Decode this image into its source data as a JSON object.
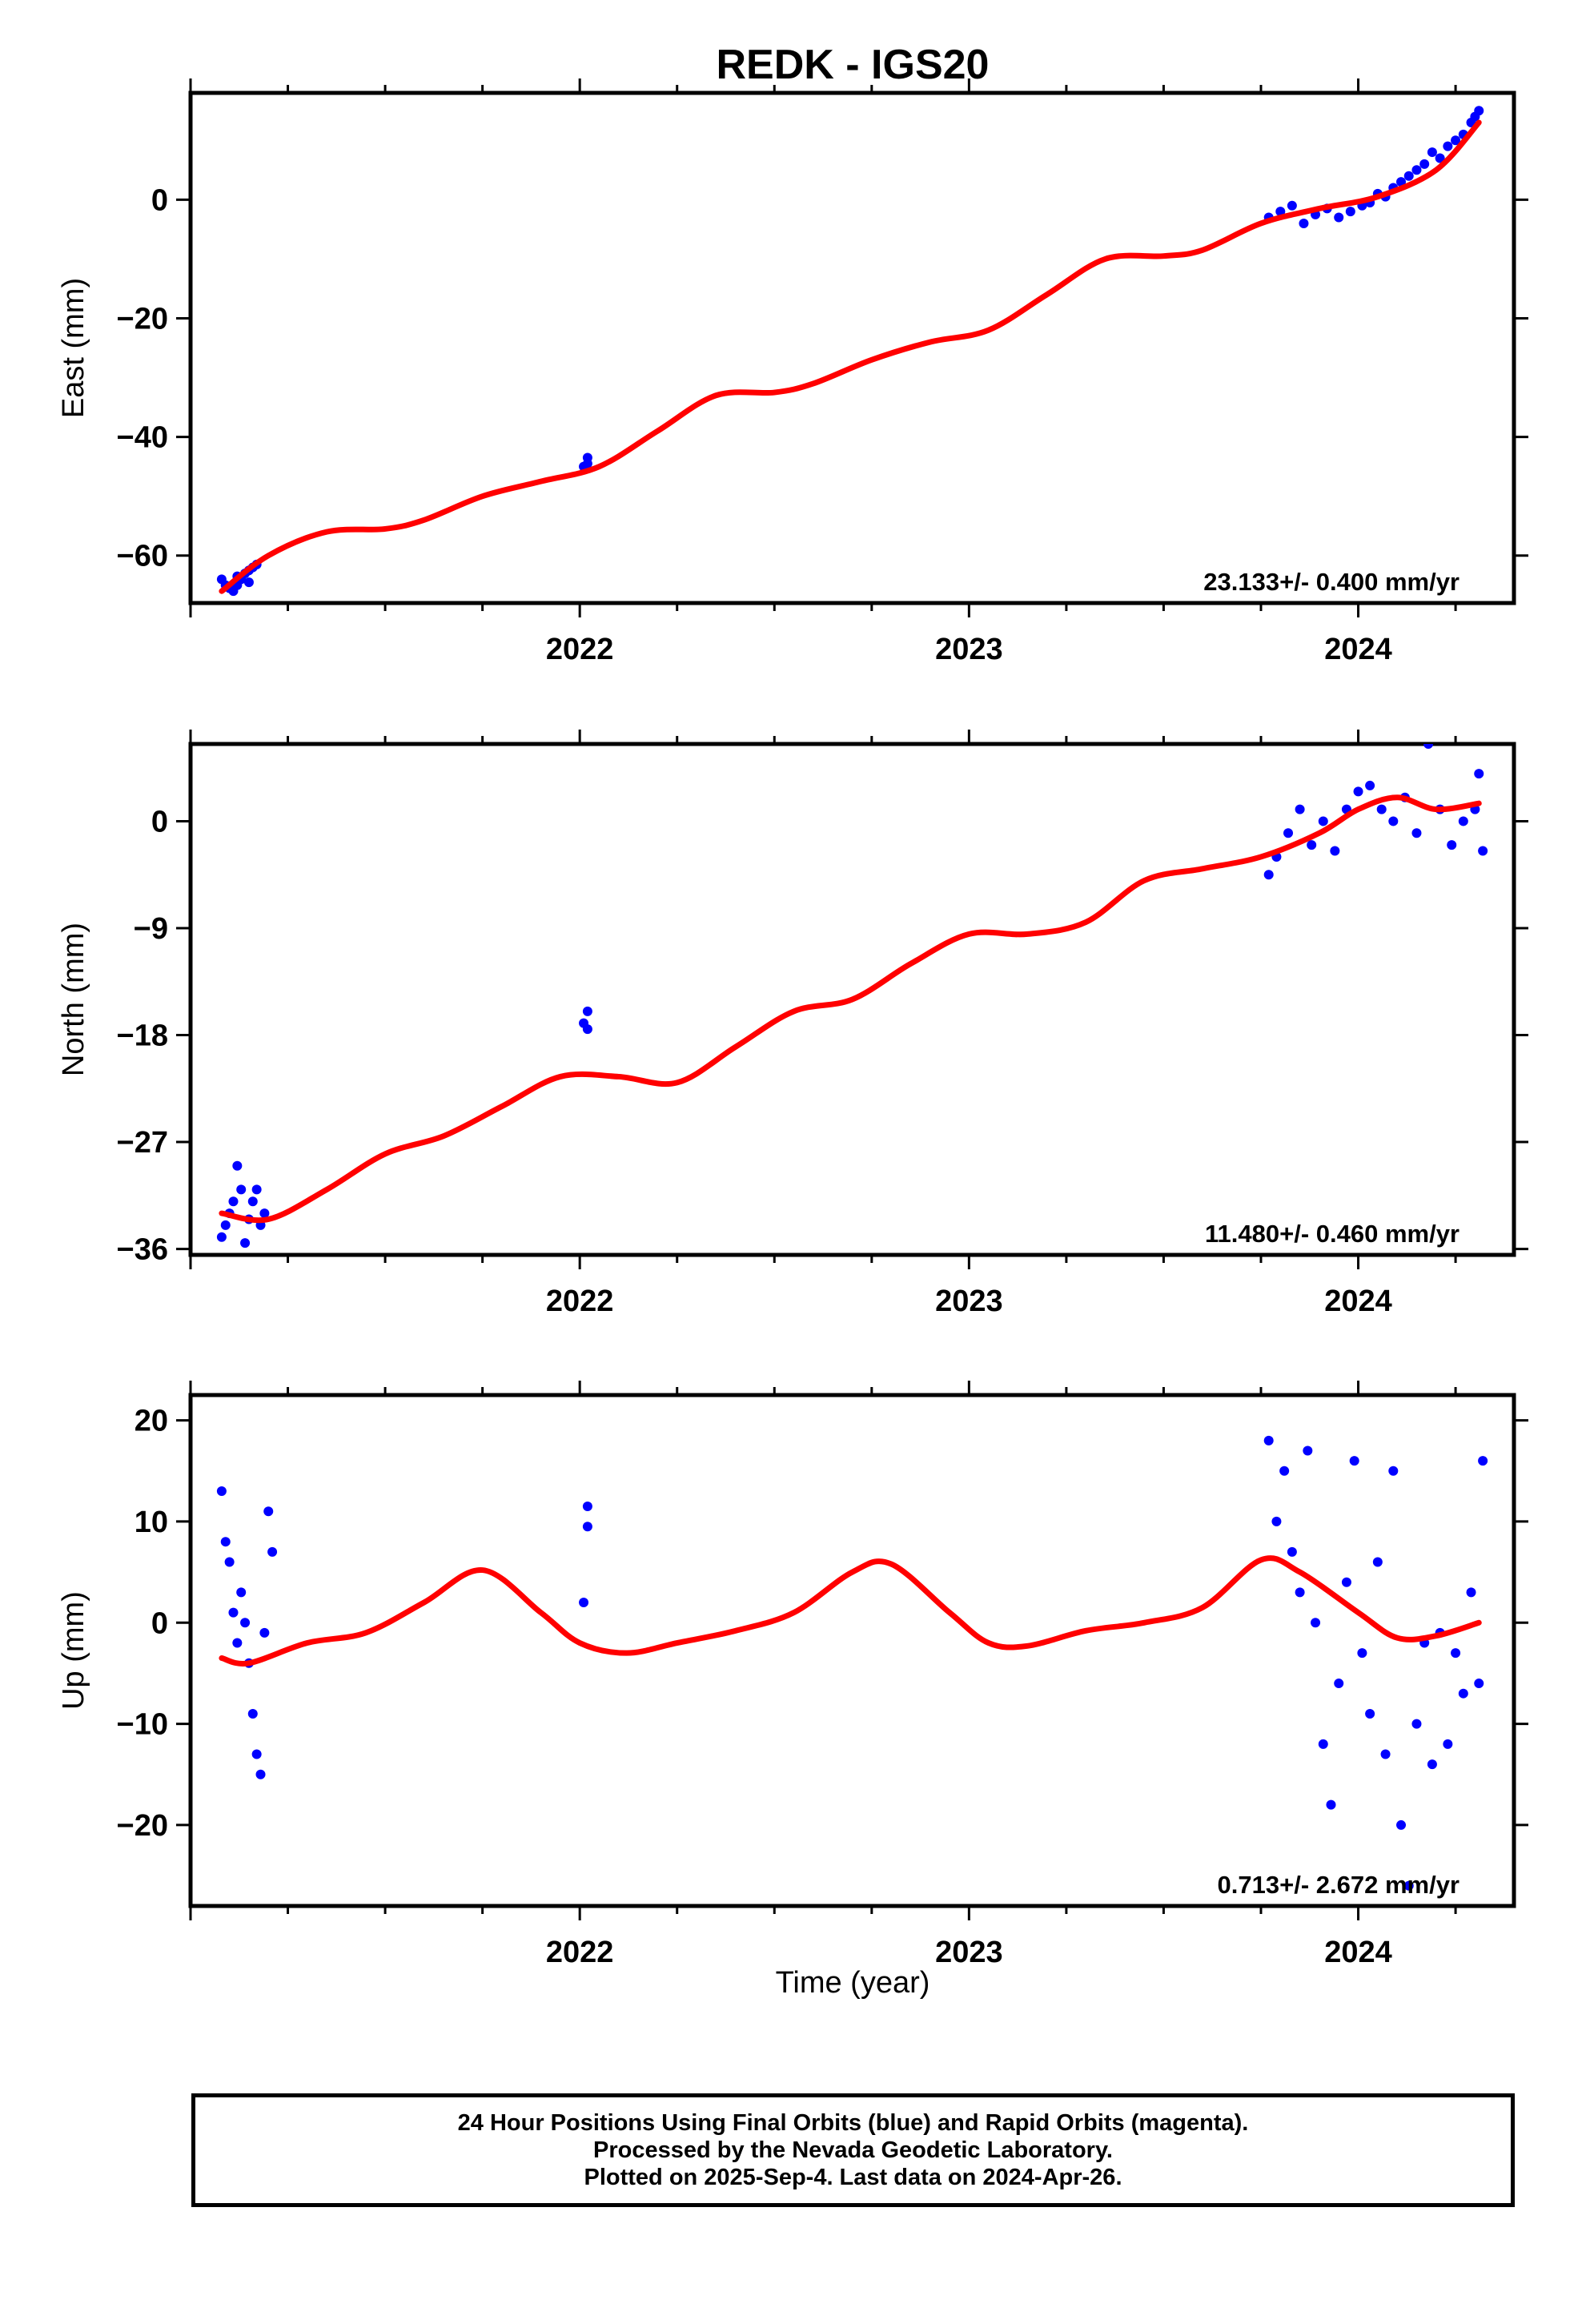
{
  "chart_data": {
    "type": "scatter",
    "title": "REDK - IGS20",
    "xlabel": "Time (year)",
    "xlim": [
      2021.0,
      2024.4
    ],
    "x_ticks": [
      2022,
      2023,
      2024
    ],
    "x_tick_labels": [
      "2022",
      "2023",
      "2024"
    ],
    "panels": [
      {
        "name": "east",
        "ylabel": "East (mm)",
        "ylim": [
          -68,
          18
        ],
        "y_ticks": [
          -60,
          -40,
          -20,
          0
        ],
        "y_tick_labels": [
          "−60",
          "−40",
          "−20",
          "0"
        ],
        "rate_label": "23.133+/- 0.400 mm/yr",
        "series": [
          {
            "name": "Final Orbits",
            "color": "#0000ff",
            "type": "scatter",
            "points": [
              [
                2021.08,
                -64
              ],
              [
                2021.09,
                -65
              ],
              [
                2021.1,
                -65.5
              ],
              [
                2021.11,
                -66
              ],
              [
                2021.12,
                -65
              ],
              [
                2021.13,
                -64
              ],
              [
                2021.14,
                -63
              ],
              [
                2021.15,
                -62.5
              ],
              [
                2021.16,
                -62
              ],
              [
                2021.17,
                -61.5
              ],
              [
                2021.12,
                -63.5
              ],
              [
                2021.15,
                -64.5
              ],
              [
                2022.01,
                -45
              ],
              [
                2022.02,
                -43.5
              ],
              [
                2022.02,
                -44.5
              ],
              [
                2023.77,
                -3
              ],
              [
                2023.8,
                -2
              ],
              [
                2023.83,
                -1
              ],
              [
                2023.86,
                -4
              ],
              [
                2023.89,
                -2.5
              ],
              [
                2023.92,
                -1.5
              ],
              [
                2023.95,
                -3
              ],
              [
                2023.98,
                -2
              ],
              [
                2024.01,
                -1
              ],
              [
                2024.03,
                -0.5
              ],
              [
                2024.05,
                1
              ],
              [
                2024.07,
                0.5
              ],
              [
                2024.09,
                2
              ],
              [
                2024.11,
                3
              ],
              [
                2024.13,
                4
              ],
              [
                2024.15,
                5
              ],
              [
                2024.17,
                6
              ],
              [
                2024.19,
                8
              ],
              [
                2024.21,
                7
              ],
              [
                2024.23,
                9
              ],
              [
                2024.25,
                10
              ],
              [
                2024.27,
                11
              ],
              [
                2024.29,
                13
              ],
              [
                2024.3,
                14
              ],
              [
                2024.31,
                15
              ]
            ]
          },
          {
            "name": "Model",
            "color": "#ff0000",
            "type": "line",
            "points": [
              [
                2021.08,
                -66
              ],
              [
                2021.2,
                -60
              ],
              [
                2021.35,
                -56
              ],
              [
                2021.5,
                -55.5
              ],
              [
                2021.6,
                -54
              ],
              [
                2021.75,
                -50
              ],
              [
                2021.9,
                -47.5
              ],
              [
                2022.05,
                -45
              ],
              [
                2022.2,
                -39
              ],
              [
                2022.35,
                -33
              ],
              [
                2022.5,
                -32.5
              ],
              [
                2022.6,
                -31
              ],
              [
                2022.75,
                -27
              ],
              [
                2022.9,
                -24
              ],
              [
                2023.05,
                -22
              ],
              [
                2023.2,
                -16
              ],
              [
                2023.35,
                -10
              ],
              [
                2023.5,
                -9.5
              ],
              [
                2023.6,
                -8.5
              ],
              [
                2023.75,
                -4
              ],
              [
                2023.9,
                -1.5
              ],
              [
                2024.05,
                0.5
              ],
              [
                2024.2,
                5
              ],
              [
                2024.31,
                13
              ]
            ]
          }
        ]
      },
      {
        "name": "north",
        "ylabel": "North (mm)",
        "ylim": [
          -36.5,
          6.5
        ],
        "y_ticks": [
          -36,
          -27,
          -18,
          -9,
          0
        ],
        "y_tick_labels": [
          "−36",
          "−27",
          "−18",
          "−9",
          "0"
        ],
        "rate_label": "11.480+/- 0.460 mm/yr",
        "series": [
          {
            "name": "Final Orbits",
            "color": "#0000ff",
            "type": "scatter",
            "points": [
              [
                2021.08,
                -35
              ],
              [
                2021.09,
                -34
              ],
              [
                2021.1,
                -33
              ],
              [
                2021.11,
                -32
              ],
              [
                2021.12,
                -29
              ],
              [
                2021.13,
                -31
              ],
              [
                2021.14,
                -35.5
              ],
              [
                2021.15,
                -33.5
              ],
              [
                2021.16,
                -32
              ],
              [
                2021.17,
                -31
              ],
              [
                2021.18,
                -34
              ],
              [
                2021.19,
                -33
              ],
              [
                2022.01,
                -17
              ],
              [
                2022.02,
                -16
              ],
              [
                2022.02,
                -17.5
              ],
              [
                2023.77,
                -4.5
              ],
              [
                2023.79,
                -3
              ],
              [
                2023.82,
                -1
              ],
              [
                2023.85,
                1
              ],
              [
                2023.88,
                -2
              ],
              [
                2023.91,
                0
              ],
              [
                2023.94,
                -2.5
              ],
              [
                2023.97,
                1
              ],
              [
                2024.0,
                2.5
              ],
              [
                2024.03,
                3
              ],
              [
                2024.06,
                1
              ],
              [
                2024.09,
                0
              ],
              [
                2024.12,
                2
              ],
              [
                2024.15,
                -1
              ],
              [
                2024.18,
                6.5
              ],
              [
                2024.21,
                1
              ],
              [
                2024.24,
                -2
              ],
              [
                2024.27,
                0
              ],
              [
                2024.3,
                1
              ],
              [
                2024.31,
                4
              ],
              [
                2024.32,
                -2.5
              ]
            ]
          },
          {
            "name": "Model",
            "color": "#ff0000",
            "type": "line",
            "points": [
              [
                2021.08,
                -33
              ],
              [
                2021.2,
                -33.5
              ],
              [
                2021.35,
                -31
              ],
              [
                2021.5,
                -28
              ],
              [
                2021.65,
                -26.5
              ],
              [
                2021.8,
                -24
              ],
              [
                2021.95,
                -21.5
              ],
              [
                2022.1,
                -21.5
              ],
              [
                2022.25,
                -22
              ],
              [
                2022.4,
                -19
              ],
              [
                2022.55,
                -16
              ],
              [
                2022.7,
                -15
              ],
              [
                2022.85,
                -12
              ],
              [
                2023.0,
                -9.5
              ],
              [
                2023.15,
                -9.5
              ],
              [
                2023.3,
                -8.5
              ],
              [
                2023.45,
                -5
              ],
              [
                2023.6,
                -4
              ],
              [
                2023.75,
                -3
              ],
              [
                2023.9,
                -1
              ],
              [
                2024.0,
                1
              ],
              [
                2024.1,
                2
              ],
              [
                2024.2,
                1
              ],
              [
                2024.31,
                1.5
              ]
            ]
          }
        ]
      },
      {
        "name": "up",
        "ylabel": "Up (mm)",
        "ylim": [
          -28,
          22.5
        ],
        "y_ticks": [
          -20,
          -10,
          0,
          10,
          20
        ],
        "y_tick_labels": [
          "−20",
          "−10",
          "0",
          "10",
          "20"
        ],
        "rate_label": "0.713+/- 2.672 mm/yr",
        "series": [
          {
            "name": "Final Orbits",
            "color": "#0000ff",
            "type": "scatter",
            "points": [
              [
                2021.08,
                13
              ],
              [
                2021.09,
                8
              ],
              [
                2021.1,
                6
              ],
              [
                2021.11,
                1
              ],
              [
                2021.12,
                -2
              ],
              [
                2021.13,
                3
              ],
              [
                2021.14,
                0
              ],
              [
                2021.15,
                -4
              ],
              [
                2021.16,
                -9
              ],
              [
                2021.17,
                -13
              ],
              [
                2021.18,
                -15
              ],
              [
                2021.19,
                -1
              ],
              [
                2021.2,
                11
              ],
              [
                2021.21,
                7
              ],
              [
                2022.01,
                2
              ],
              [
                2022.02,
                9.5
              ],
              [
                2022.02,
                11.5
              ],
              [
                2023.77,
                18
              ],
              [
                2023.79,
                10
              ],
              [
                2023.81,
                15
              ],
              [
                2023.83,
                7
              ],
              [
                2023.85,
                3
              ],
              [
                2023.87,
                17
              ],
              [
                2023.89,
                0
              ],
              [
                2023.91,
                -12
              ],
              [
                2023.93,
                -18
              ],
              [
                2023.95,
                -6
              ],
              [
                2023.97,
                4
              ],
              [
                2023.99,
                16
              ],
              [
                2024.01,
                -3
              ],
              [
                2024.03,
                -9
              ],
              [
                2024.05,
                6
              ],
              [
                2024.07,
                -13
              ],
              [
                2024.09,
                15
              ],
              [
                2024.11,
                -20
              ],
              [
                2024.13,
                -26
              ],
              [
                2024.15,
                -10
              ],
              [
                2024.17,
                -2
              ],
              [
                2024.19,
                -14
              ],
              [
                2024.21,
                -1
              ],
              [
                2024.23,
                -12
              ],
              [
                2024.25,
                -3
              ],
              [
                2024.27,
                -7
              ],
              [
                2024.29,
                3
              ],
              [
                2024.31,
                -6
              ],
              [
                2024.32,
                16
              ]
            ]
          },
          {
            "name": "Model",
            "color": "#ff0000",
            "type": "line",
            "points": [
              [
                2021.08,
                -3.5
              ],
              [
                2021.15,
                -4
              ],
              [
                2021.3,
                -2
              ],
              [
                2021.45,
                -1
              ],
              [
                2021.6,
                2
              ],
              [
                2021.75,
                5.2
              ],
              [
                2021.9,
                1
              ],
              [
                2022.0,
                -2
              ],
              [
                2022.12,
                -3
              ],
              [
                2022.25,
                -2
              ],
              [
                2022.4,
                -0.8
              ],
              [
                2022.55,
                1
              ],
              [
                2022.7,
                5
              ],
              [
                2022.8,
                5.8
              ],
              [
                2022.95,
                1
              ],
              [
                2023.05,
                -2
              ],
              [
                2023.15,
                -2.3
              ],
              [
                2023.3,
                -0.8
              ],
              [
                2023.45,
                0
              ],
              [
                2023.6,
                1.5
              ],
              [
                2023.75,
                6.2
              ],
              [
                2023.85,
                5
              ],
              [
                2024.0,
                1
              ],
              [
                2024.1,
                -1.5
              ],
              [
                2024.2,
                -1.3
              ],
              [
                2024.31,
                0
              ]
            ]
          }
        ]
      }
    ],
    "footer": [
      "24 Hour Positions Using Final Orbits (blue) and Rapid Orbits (magenta).",
      "Processed by the Nevada Geodetic Laboratory.",
      "Plotted on 2025-Sep-4. Last data on 2024-Apr-26."
    ]
  }
}
